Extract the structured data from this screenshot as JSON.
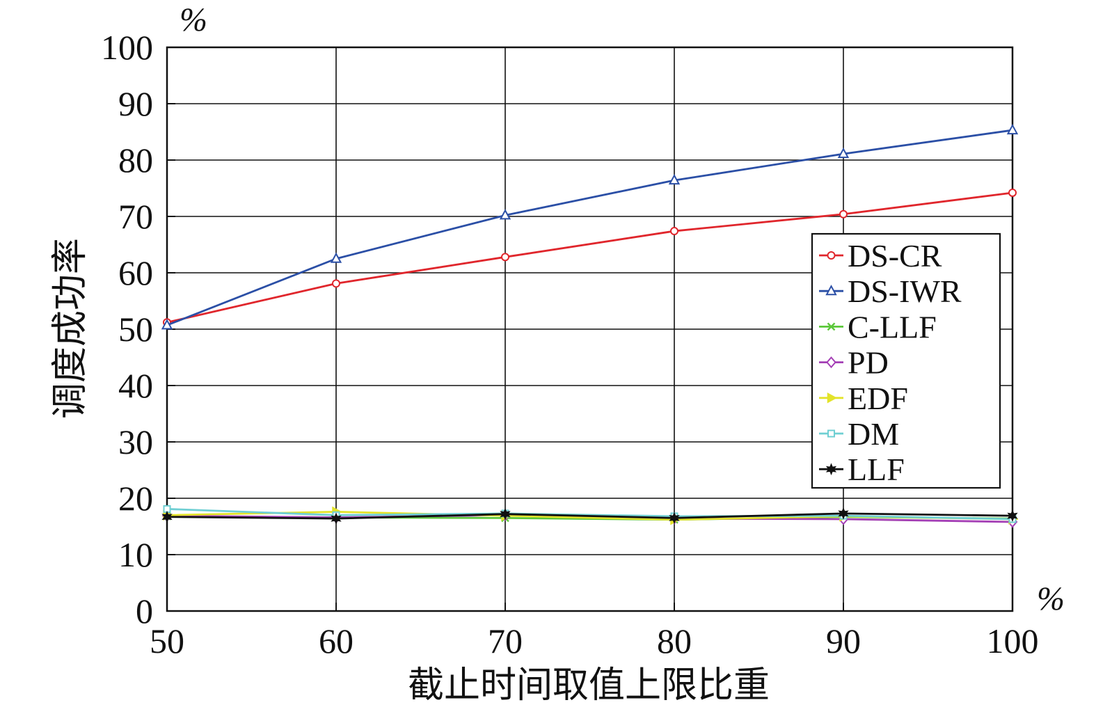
{
  "chart_data": {
    "type": "line",
    "x": [
      50,
      60,
      70,
      80,
      90,
      100
    ],
    "xlabel": "截止时间取值上限比重",
    "ylabel": "调度成功率",
    "x_unit": "%",
    "y_unit": "%",
    "xlim": [
      50,
      100
    ],
    "ylim": [
      0,
      100
    ],
    "xticks": [
      50,
      60,
      70,
      80,
      90,
      100
    ],
    "yticks": [
      0,
      10,
      20,
      30,
      40,
      50,
      60,
      70,
      80,
      90,
      100
    ],
    "grid": true,
    "legend_position": "right",
    "series": [
      {
        "name": "DS-CR",
        "color": "#e0262c",
        "marker": "circle",
        "values": [
          51.2,
          58.1,
          62.8,
          67.4,
          70.4,
          74.2
        ]
      },
      {
        "name": "DS-IWR",
        "color": "#2b4fa6",
        "marker": "triangle-up",
        "values": [
          50.7,
          62.5,
          70.2,
          76.4,
          81.1,
          85.3
        ]
      },
      {
        "name": "C-LLF",
        "color": "#5cc83a",
        "marker": "x",
        "values": [
          16.8,
          16.6,
          16.5,
          16.2,
          16.7,
          16.4
        ]
      },
      {
        "name": "PD",
        "color": "#a43fb5",
        "marker": "diamond",
        "values": [
          16.9,
          16.6,
          17.0,
          16.4,
          16.3,
          15.8
        ]
      },
      {
        "name": "EDF",
        "color": "#e3e32a",
        "marker": "triangle-right",
        "values": [
          17.0,
          17.6,
          16.9,
          16.2,
          16.8,
          16.3
        ]
      },
      {
        "name": "DM",
        "color": "#6fcfd3",
        "marker": "square",
        "values": [
          18.1,
          17.0,
          17.3,
          16.8,
          16.9,
          16.3
        ]
      },
      {
        "name": "LLF",
        "color": "#111111",
        "marker": "hexagram",
        "values": [
          16.7,
          16.4,
          17.2,
          16.5,
          17.3,
          16.9
        ]
      }
    ]
  }
}
